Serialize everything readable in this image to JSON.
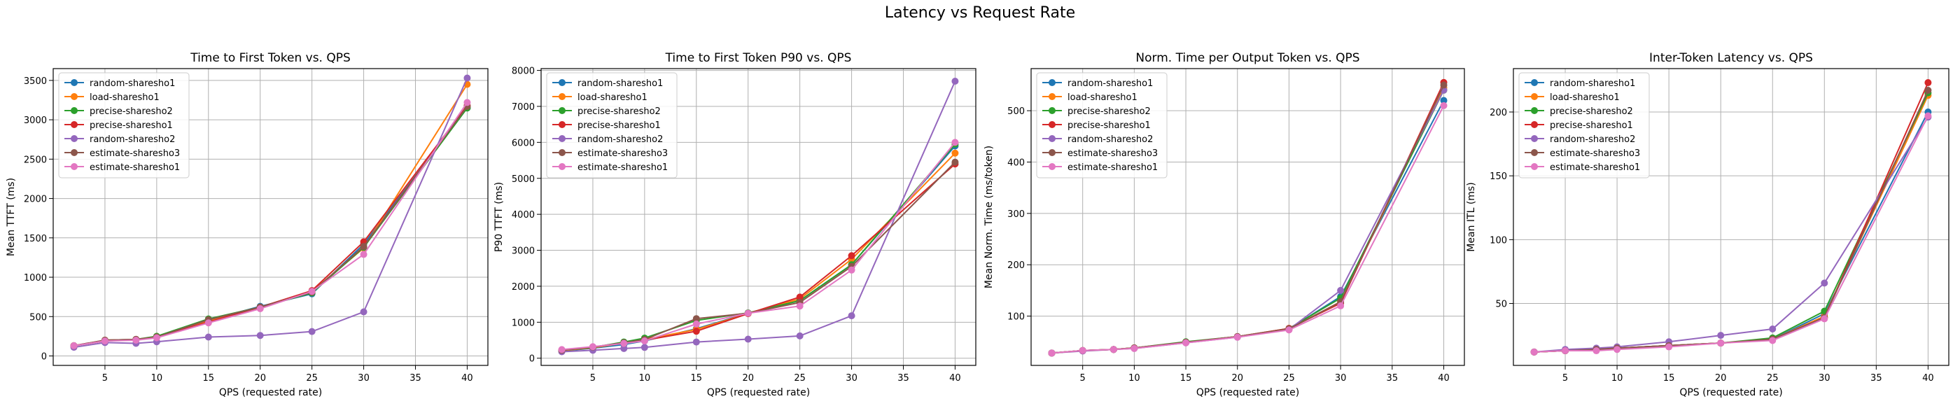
{
  "figure": {
    "title": "Latency vs Request Rate"
  },
  "colors": {
    "random-sharesho1": "#1f77b4",
    "load-sharesho1": "#ff7f0e",
    "precise-sharesho2": "#2ca02c",
    "precise-sharesho1": "#d62728",
    "random-sharesho2": "#9467bd",
    "estimate-sharesho3": "#8c564b",
    "estimate-sharesho1": "#e377c2"
  },
  "chart_data": [
    {
      "type": "line",
      "title": "Time to First Token vs. QPS",
      "xlabel": "QPS (requested rate)",
      "ylabel": "Mean TTFT (ms)",
      "xlim": [
        0,
        42
      ],
      "ylim": [
        -120,
        3650
      ],
      "xticks": [
        5,
        10,
        15,
        20,
        25,
        30,
        35,
        40
      ],
      "yticks": [
        0,
        500,
        1000,
        1500,
        2000,
        2500,
        3000,
        3500
      ],
      "grid": true,
      "legend": "upper-left",
      "x": [
        2,
        5,
        8,
        10,
        15,
        20,
        25,
        30,
        40
      ],
      "series": [
        {
          "name": "random-sharesho1",
          "values": [
            130,
            190,
            210,
            240,
            450,
            630,
            790,
            1420,
            3150
          ]
        },
        {
          "name": "load-sharesho1",
          "values": [
            130,
            190,
            210,
            240,
            440,
            620,
            820,
            1370,
            3450
          ]
        },
        {
          "name": "precise-sharesho2",
          "values": [
            130,
            200,
            210,
            250,
            470,
            620,
            800,
            1380,
            3150
          ]
        },
        {
          "name": "precise-sharesho1",
          "values": [
            130,
            200,
            210,
            240,
            430,
            620,
            830,
            1450,
            3180
          ]
        },
        {
          "name": "random-sharesho2",
          "values": [
            110,
            170,
            160,
            180,
            240,
            260,
            310,
            560,
            3530
          ]
        },
        {
          "name": "estimate-sharesho3",
          "values": [
            130,
            200,
            210,
            240,
            460,
            620,
            810,
            1390,
            3170
          ]
        },
        {
          "name": "estimate-sharesho1",
          "values": [
            130,
            190,
            200,
            230,
            420,
            600,
            820,
            1290,
            3220
          ]
        }
      ]
    },
    {
      "type": "line",
      "title": "Time to First Token P90 vs. QPS",
      "xlabel": "QPS (requested rate)",
      "ylabel": "P90 TTFT (ms)",
      "xlim": [
        0,
        42
      ],
      "ylim": [
        -200,
        8050
      ],
      "xticks": [
        5,
        10,
        15,
        20,
        25,
        30,
        35,
        40
      ],
      "yticks": [
        0,
        1000,
        2000,
        3000,
        4000,
        5000,
        6000,
        7000,
        8000
      ],
      "grid": true,
      "legend": "upper-left",
      "x": [
        2,
        5,
        8,
        10,
        15,
        20,
        25,
        30,
        40
      ],
      "series": [
        {
          "name": "random-sharesho1",
          "values": [
            200,
            280,
            380,
            480,
            820,
            1250,
            1600,
            2600,
            5900
          ]
        },
        {
          "name": "load-sharesho1",
          "values": [
            210,
            290,
            420,
            520,
            800,
            1240,
            1650,
            2750,
            5700
          ]
        },
        {
          "name": "precise-sharesho2",
          "values": [
            220,
            300,
            450,
            560,
            1050,
            1260,
            1600,
            2600,
            5950
          ]
        },
        {
          "name": "precise-sharesho1",
          "values": [
            220,
            310,
            420,
            500,
            750,
            1240,
            1700,
            2850,
            5400
          ]
        },
        {
          "name": "random-sharesho2",
          "values": [
            180,
            220,
            270,
            300,
            450,
            530,
            620,
            1180,
            7700
          ]
        },
        {
          "name": "estimate-sharesho3",
          "values": [
            220,
            310,
            430,
            520,
            1100,
            1250,
            1550,
            2550,
            5450
          ]
        },
        {
          "name": "estimate-sharesho1",
          "values": [
            240,
            320,
            410,
            480,
            950,
            1250,
            1450,
            2450,
            6000
          ]
        }
      ]
    },
    {
      "type": "line",
      "title": "Norm. Time per Output Token vs. QPS",
      "xlabel": "QPS (requested rate)",
      "ylabel": "Mean Norm. Time (ms/token)",
      "xlim": [
        0,
        42
      ],
      "ylim": [
        4,
        582
      ],
      "xticks": [
        5,
        10,
        15,
        20,
        25,
        30,
        35,
        40
      ],
      "yticks": [
        100,
        200,
        300,
        400,
        500
      ],
      "grid": true,
      "legend": "upper-left",
      "x": [
        2,
        5,
        8,
        10,
        15,
        20,
        25,
        30,
        40
      ],
      "series": [
        {
          "name": "random-sharesho1",
          "values": [
            28,
            33,
            35,
            38,
            49,
            60,
            75,
            138,
            520
          ]
        },
        {
          "name": "load-sharesho1",
          "values": [
            28,
            33,
            35,
            38,
            49,
            60,
            75,
            128,
            545
          ]
        },
        {
          "name": "precise-sharesho2",
          "values": [
            28,
            33,
            35,
            38,
            50,
            60,
            76,
            135,
            540
          ]
        },
        {
          "name": "precise-sharesho1",
          "values": [
            28,
            33,
            35,
            38,
            49,
            60,
            76,
            125,
            555
          ]
        },
        {
          "name": "random-sharesho2",
          "values": [
            28,
            32,
            35,
            37,
            48,
            59,
            74,
            150,
            540
          ]
        },
        {
          "name": "estimate-sharesho3",
          "values": [
            28,
            33,
            35,
            38,
            49,
            60,
            75,
            128,
            550
          ]
        },
        {
          "name": "estimate-sharesho1",
          "values": [
            28,
            33,
            35,
            37,
            48,
            59,
            73,
            120,
            510
          ]
        }
      ]
    },
    {
      "type": "line",
      "title": "Inter-Token Latency vs. QPS",
      "xlabel": "QPS (requested rate)",
      "ylabel": "Mean ITL (ms)",
      "xlim": [
        0,
        42
      ],
      "ylim": [
        1.5,
        234
      ],
      "xticks": [
        5,
        10,
        15,
        20,
        25,
        30,
        35,
        40
      ],
      "yticks": [
        50,
        100,
        150,
        200
      ],
      "grid": true,
      "legend": "upper-left",
      "x": [
        2,
        5,
        8,
        10,
        15,
        20,
        25,
        30,
        40
      ],
      "series": [
        {
          "name": "random-sharesho1",
          "values": [
            12,
            13,
            14,
            15,
            17,
            19,
            22,
            42,
            200
          ]
        },
        {
          "name": "load-sharesho1",
          "values": [
            12,
            13,
            14,
            15,
            17,
            19,
            22,
            40,
            213
          ]
        },
        {
          "name": "precise-sharesho2",
          "values": [
            12,
            13,
            14,
            15,
            17,
            19,
            23,
            44,
            215
          ]
        },
        {
          "name": "precise-sharesho1",
          "values": [
            12,
            13,
            14,
            15,
            17,
            19,
            22,
            39,
            223
          ]
        },
        {
          "name": "random-sharesho2",
          "values": [
            12,
            14,
            15,
            16,
            20,
            25,
            30,
            66,
            196
          ]
        },
        {
          "name": "estimate-sharesho3",
          "values": [
            12,
            13,
            14,
            15,
            17,
            19,
            22,
            39,
            217
          ]
        },
        {
          "name": "estimate-sharesho1",
          "values": [
            12,
            13,
            13,
            14,
            16,
            19,
            21,
            38,
            197
          ]
        }
      ]
    }
  ]
}
